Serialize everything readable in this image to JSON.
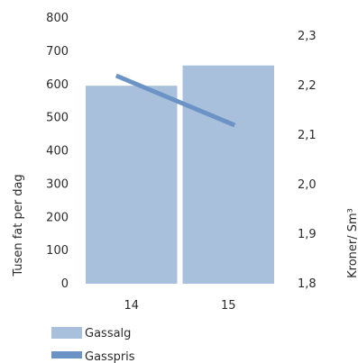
{
  "chart_data": {
    "type": "bar",
    "categories": [
      "14",
      "15"
    ],
    "series": [
      {
        "name": "Gassalg",
        "type": "bar",
        "axis": "left",
        "values": [
          596,
          657
        ],
        "color": "#a8c0dc"
      },
      {
        "name": "Gasspris",
        "type": "line",
        "axis": "right",
        "values": [
          2.22,
          2.12
        ],
        "color": "#6b93c5"
      }
    ],
    "ylabel": "Tusen fat per dag",
    "ylabel_right": "Kroner/ Sm³",
    "ylim": [
      0,
      800
    ],
    "ylim_right": [
      1.8,
      2.3
    ],
    "yticks": [
      "0",
      "100",
      "200",
      "300",
      "400",
      "500",
      "600",
      "700",
      "800"
    ],
    "yticks_right": [
      "1,8",
      "1,9",
      "2,0",
      "2,1",
      "2,2",
      "2,3"
    ],
    "legend_position": "bottom-left",
    "grid": false
  }
}
